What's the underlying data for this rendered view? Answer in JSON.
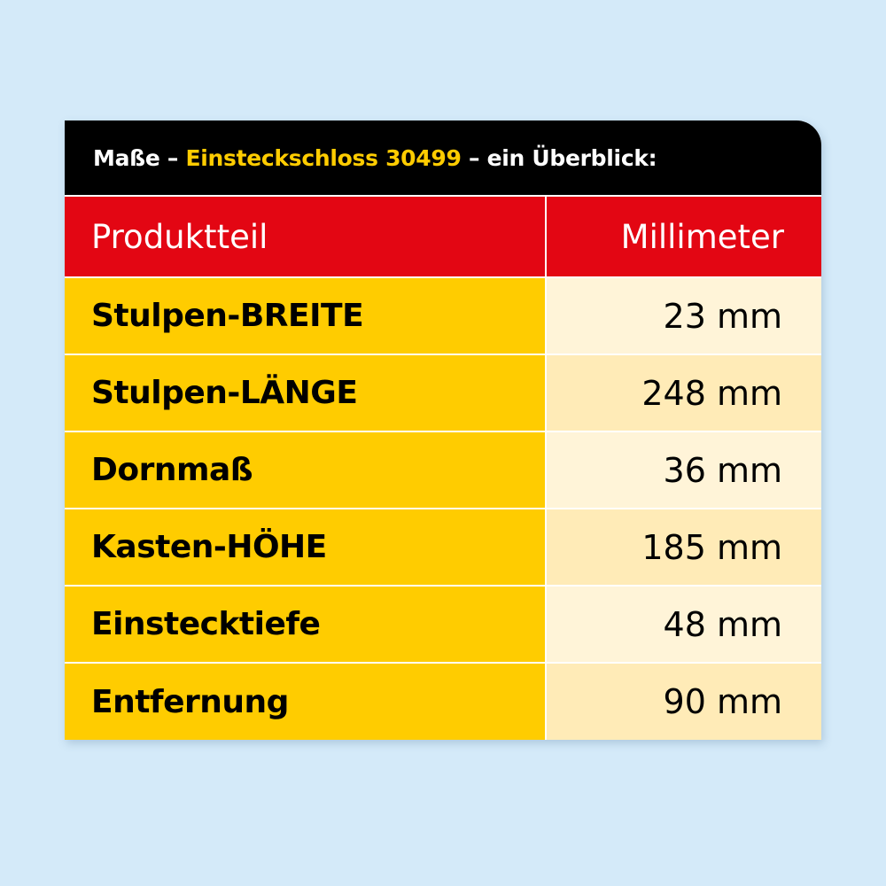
{
  "title": {
    "prefix": "Maße – ",
    "highlight": "Einsteckschloss 30499",
    "suffix": " – ein Überblick:"
  },
  "table": {
    "headers": [
      "Produktteil",
      "Millimeter"
    ],
    "rows": [
      {
        "part": "Stulpen-BREITE",
        "value": "23 mm"
      },
      {
        "part": "Stulpen-LÄNGE",
        "value": "248 mm"
      },
      {
        "part": "Dornmaß",
        "value": "36 mm"
      },
      {
        "part": "Kasten-HÖHE",
        "value": "185 mm"
      },
      {
        "part": "Einstecktiefe",
        "value": "48 mm"
      },
      {
        "part": "Entfernung",
        "value": "90 mm"
      }
    ]
  },
  "colors": {
    "background": "#d4eaf9",
    "title_bar": "#000000",
    "title_accent": "#ffcc00",
    "header_row": "#e30613",
    "part_column": "#ffcc00",
    "value_row_light": "#fff4d8",
    "value_row_dark": "#ffebb7"
  }
}
